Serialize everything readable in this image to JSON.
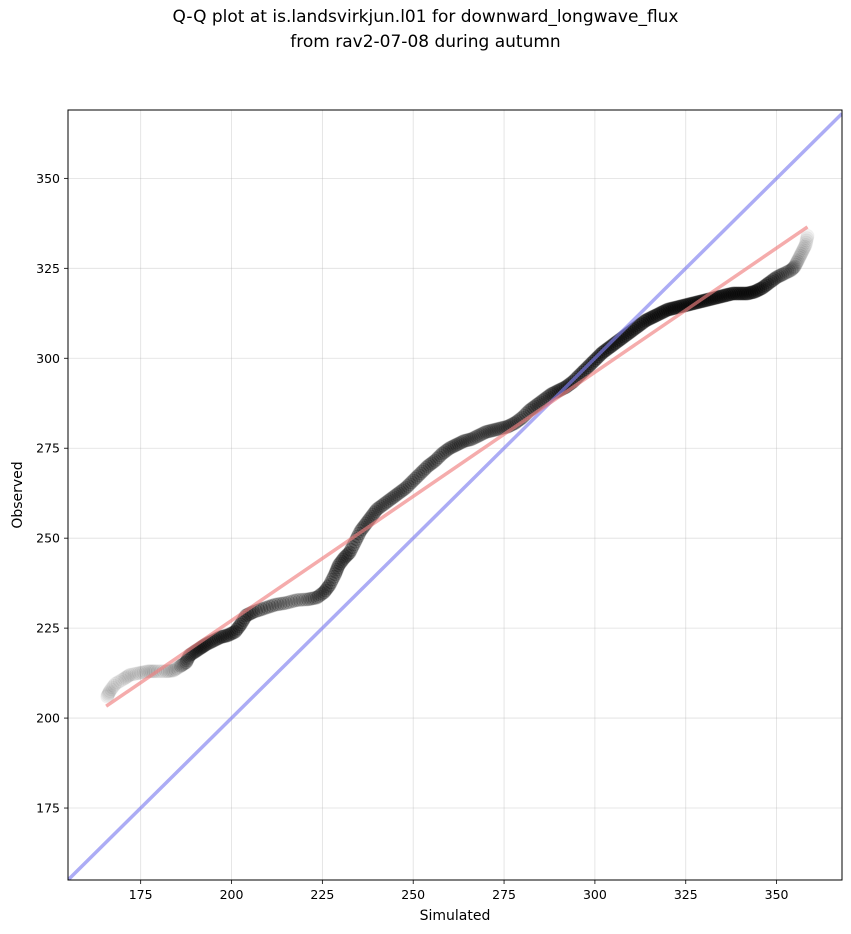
{
  "chart_data": {
    "type": "scatter",
    "title": "Q-Q plot at is.landsvirkjun.l01 for downward_longwave_flux",
    "subtitle": "from rav2-07-08 during autumn",
    "xlabel": "Simulated",
    "ylabel": "Observed",
    "xlim": [
      155,
      368
    ],
    "ylim": [
      155,
      369
    ],
    "xticks": [
      175,
      200,
      225,
      250,
      275,
      300,
      325,
      350
    ],
    "yticks": [
      175,
      200,
      225,
      250,
      275,
      300,
      325,
      350
    ],
    "grid": true,
    "colors": {
      "points": "#000000",
      "fit_line": "#f08080",
      "identity_line": "#8080f0"
    },
    "fit_line": {
      "x": [
        165.5,
        358.5
      ],
      "y": [
        203.3,
        336.5
      ]
    },
    "identity_line": {
      "x": [
        155,
        368
      ],
      "y": [
        155,
        368
      ]
    },
    "series": [
      {
        "x": [
          165.8,
          166.5,
          168.0,
          170.5,
          172.0,
          174.5,
          177.0,
          179.0,
          182.0,
          184.0,
          186.0,
          187.5,
          188.5,
          190.0,
          191.5,
          193.0,
          195.0,
          197.0,
          199.0,
          201.0,
          202.5,
          204.0,
          206.0,
          209.0,
          212.0,
          215.0,
          218.0,
          221.0,
          223.5,
          225.5,
          227.0,
          228.5,
          229.5,
          231.0,
          232.5,
          234.0,
          235.5,
          237.0,
          238.5,
          240.0,
          242.0,
          244.0,
          246.0,
          248.0,
          250.0,
          252.0,
          254.0,
          256.0,
          258.0,
          260.0,
          262.0,
          264.0,
          266.0,
          268.0,
          270.0,
          272.0,
          274.0,
          276.0,
          278.0,
          280.0,
          282.0,
          284.0,
          286.0,
          288.0,
          290.0,
          292.0,
          294.0,
          296.0,
          298.0,
          300.0,
          302.0,
          304.0,
          306.0,
          308.0,
          310.0,
          312.0,
          314.0,
          316.0,
          318.0,
          320.0,
          322.0,
          324.0,
          326.0,
          328.0,
          330.0,
          332.0,
          334.0,
          336.0,
          338.0,
          340.0,
          342.0,
          344.0,
          346.0,
          348.0,
          350.0,
          352.0,
          354.0,
          355.0,
          356.0,
          357.0,
          358.0,
          358.5
        ],
        "y": [
          206.0,
          207.5,
          209.5,
          211.0,
          212.0,
          212.5,
          213.0,
          213.0,
          213.0,
          213.2,
          214.5,
          215.5,
          217.5,
          218.5,
          219.5,
          220.5,
          221.5,
          222.5,
          223.0,
          224.0,
          226.0,
          228.5,
          229.5,
          230.5,
          231.5,
          232.0,
          232.8,
          233.0,
          233.5,
          235.0,
          237.0,
          240.0,
          242.5,
          244.5,
          246.0,
          249.0,
          252.0,
          254.0,
          256.0,
          258.0,
          259.5,
          261.0,
          262.5,
          264.0,
          266.0,
          268.0,
          270.0,
          271.5,
          273.5,
          275.0,
          276.0,
          277.0,
          277.5,
          278.5,
          279.5,
          280.0,
          280.5,
          281.0,
          282.0,
          283.5,
          285.5,
          287.0,
          288.5,
          290.0,
          291.0,
          292.0,
          293.5,
          295.5,
          297.5,
          299.5,
          301.5,
          303.0,
          304.5,
          306.0,
          307.5,
          309.0,
          310.5,
          311.5,
          312.5,
          313.5,
          314.0,
          314.5,
          315.0,
          315.5,
          316.0,
          316.5,
          317.0,
          317.5,
          318.0,
          318.0,
          318.0,
          318.5,
          319.5,
          321.0,
          322.5,
          323.5,
          324.5,
          325.5,
          327.5,
          329.5,
          331.5,
          334.0
        ],
        "alpha": [
          0.1,
          0.1,
          0.1,
          0.1,
          0.1,
          0.12,
          0.12,
          0.12,
          0.14,
          0.16,
          0.3,
          0.4,
          0.45,
          0.5,
          0.55,
          0.55,
          0.55,
          0.55,
          0.55,
          0.55,
          0.55,
          0.5,
          0.5,
          0.45,
          0.4,
          0.35,
          0.35,
          0.4,
          0.45,
          0.5,
          0.5,
          0.5,
          0.5,
          0.5,
          0.5,
          0.5,
          0.45,
          0.45,
          0.45,
          0.45,
          0.45,
          0.45,
          0.45,
          0.45,
          0.45,
          0.45,
          0.45,
          0.45,
          0.45,
          0.45,
          0.45,
          0.4,
          0.4,
          0.4,
          0.4,
          0.4,
          0.4,
          0.45,
          0.45,
          0.45,
          0.5,
          0.5,
          0.5,
          0.55,
          0.55,
          0.6,
          0.6,
          0.65,
          0.65,
          0.7,
          0.7,
          0.7,
          0.7,
          0.7,
          0.7,
          0.7,
          0.7,
          0.7,
          0.7,
          0.7,
          0.7,
          0.7,
          0.7,
          0.7,
          0.7,
          0.7,
          0.7,
          0.7,
          0.7,
          0.7,
          0.7,
          0.7,
          0.65,
          0.55,
          0.45,
          0.35,
          0.25,
          0.2,
          0.15,
          0.12,
          0.1,
          0.1
        ]
      }
    ]
  }
}
